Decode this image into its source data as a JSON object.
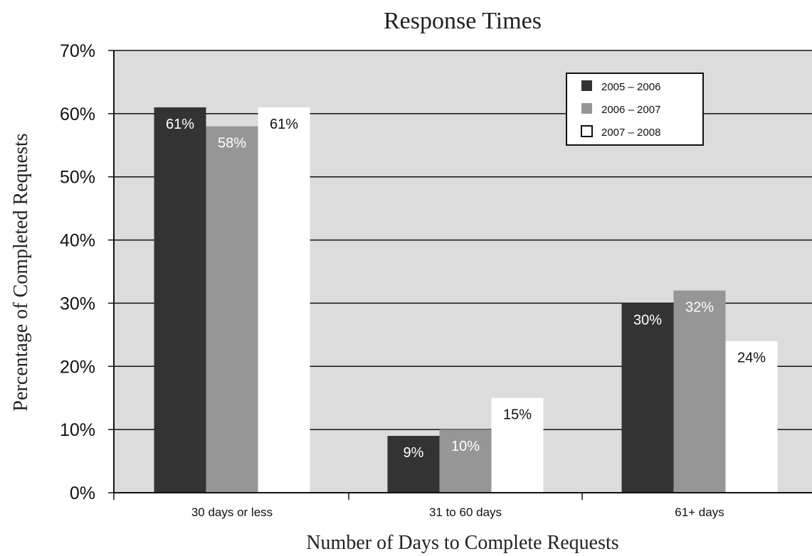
{
  "chart_data": {
    "type": "bar",
    "title": "Response Times",
    "xlabel": "Number of Days to Complete Requests",
    "ylabel": "Percentage of Completed Requests",
    "categories": [
      "30 days or less",
      "31 to 60 days",
      "61+ days"
    ],
    "series": [
      {
        "name": "2005 – 2006",
        "values": [
          61,
          9,
          30
        ],
        "labels": [
          "61%",
          "9%",
          "30%"
        ],
        "color": "#333333",
        "label_color": "#ffffff"
      },
      {
        "name": "2006 – 2007",
        "values": [
          58,
          10,
          32
        ],
        "labels": [
          "58%",
          "10%",
          "32%"
        ],
        "color": "#969696",
        "label_color": "#ffffff"
      },
      {
        "name": "2007 – 2008",
        "values": [
          61,
          15,
          24
        ],
        "labels": [
          "61%",
          "15%",
          "24%"
        ],
        "color": "#ffffff",
        "label_color": "#111111"
      }
    ],
    "ylim": [
      0,
      70
    ],
    "yticks": [
      "0%",
      "10%",
      "20%",
      "30%",
      "40%",
      "50%",
      "60%",
      "70%"
    ],
    "grid": true,
    "legend_position": "top-right",
    "plot_background": "#dcdcdc"
  }
}
